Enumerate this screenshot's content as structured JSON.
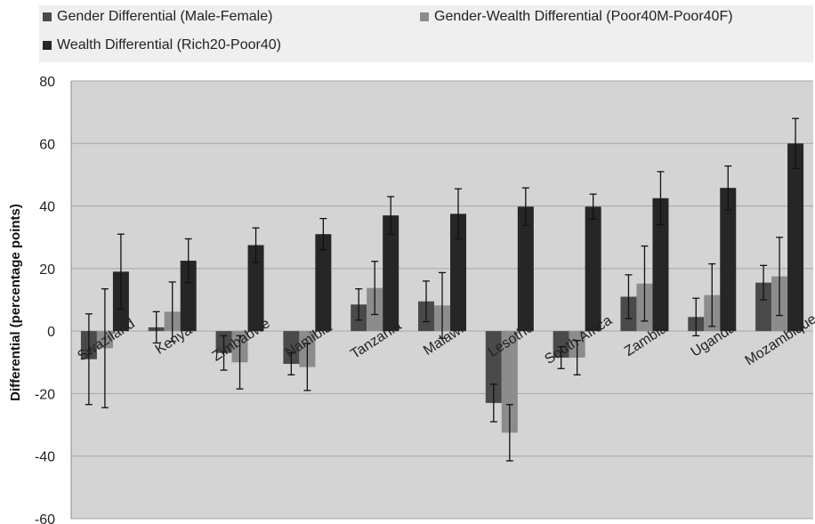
{
  "chart_data": {
    "type": "bar",
    "title": "",
    "ylabel": "Differential (percentage points)",
    "ylim": [
      -60,
      80
    ],
    "yticks": [
      -60,
      -40,
      -20,
      0,
      20,
      40,
      60,
      80
    ],
    "grid": true,
    "legend_position": "top",
    "categories": [
      "Swaziland",
      "Kenya",
      "Zimbabwe",
      "Namibia",
      "Tanzania",
      "Malawi",
      "Lesotho",
      "South Africa",
      "Zambia",
      "Uganda",
      "Mozambique"
    ],
    "series": [
      {
        "name": "Gender Differential (Male-Female)",
        "color": "#4a4a4a",
        "values": [
          -9,
          1.2,
          -7,
          -10.5,
          8.5,
          9.5,
          -23,
          -8.5,
          11,
          4.5,
          15.5
        ],
        "errors": [
          14.5,
          5,
          5.5,
          3.5,
          5,
          6.5,
          6,
          3.5,
          7,
          6,
          5.5
        ]
      },
      {
        "name": "Gender-Wealth Differential (Poor40M-Poor40F)",
        "color": "#8c8c8c",
        "values": [
          -5.5,
          6.2,
          -10,
          -11.5,
          13.8,
          8.2,
          -32.5,
          -8.5,
          15.2,
          11.5,
          17.5
        ],
        "errors": [
          19,
          9.5,
          8.5,
          7.5,
          8.5,
          10.5,
          9,
          5.5,
          12,
          10,
          12.5
        ]
      },
      {
        "name": "Wealth Differential (Rich20-Poor40)",
        "color": "#262626",
        "values": [
          19,
          22.5,
          27.5,
          31,
          37,
          37.5,
          39.8,
          39.8,
          42.5,
          45.8,
          60
        ],
        "errors": [
          12,
          7,
          5.5,
          5,
          6,
          8,
          6,
          4,
          8.5,
          7,
          8
        ]
      }
    ]
  }
}
